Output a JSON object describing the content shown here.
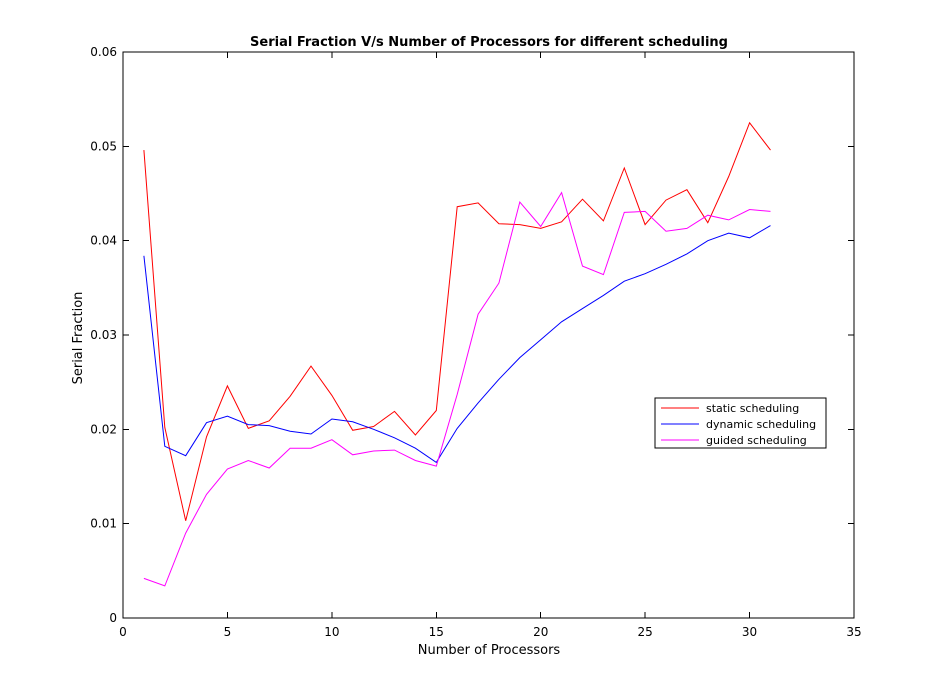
{
  "chart_data": {
    "type": "line",
    "title": "Serial Fraction V/s Number of Processors for different scheduling",
    "xlabel": "Number of Processors",
    "ylabel": "Serial Fraction",
    "xlim": [
      0,
      35
    ],
    "ylim": [
      0,
      0.06
    ],
    "xticks": [
      "0",
      "5",
      "10",
      "15",
      "20",
      "25",
      "30",
      "35"
    ],
    "yticks": [
      "0",
      "0.01",
      "0.02",
      "0.03",
      "0.04",
      "0.05",
      "0.06"
    ],
    "grid": false,
    "legend_position": "right",
    "x": [
      1,
      2,
      3,
      4,
      5,
      6,
      7,
      8,
      9,
      10,
      11,
      12,
      13,
      14,
      15,
      16,
      17,
      18,
      19,
      20,
      21,
      22,
      23,
      24,
      25,
      26,
      27,
      28,
      29,
      30,
      31
    ],
    "series": [
      {
        "name": "static scheduling",
        "color": "#ff0000",
        "values": [
          0.0496,
          0.0202,
          0.0103,
          0.0192,
          0.0246,
          0.0201,
          0.0209,
          0.0235,
          0.0267,
          0.0236,
          0.0199,
          0.0203,
          0.0219,
          0.0194,
          0.022,
          0.0436,
          0.044,
          0.0418,
          0.0417,
          0.0413,
          0.042,
          0.0444,
          0.0421,
          0.0477,
          0.0417,
          0.0443,
          0.0454,
          0.0419,
          0.0468,
          0.0525,
          0.0496
        ]
      },
      {
        "name": "dynamic scheduling",
        "color": "#0000ff",
        "values": [
          0.0384,
          0.0182,
          0.0172,
          0.0207,
          0.0214,
          0.0205,
          0.0204,
          0.0198,
          0.0195,
          0.0211,
          0.0208,
          0.02,
          0.0191,
          0.018,
          0.0165,
          0.0201,
          0.0228,
          0.0253,
          0.0276,
          0.0295,
          0.0314,
          0.0328,
          0.0342,
          0.0357,
          0.0365,
          0.0375,
          0.0386,
          0.04,
          0.0408,
          0.0403,
          0.0416
        ]
      },
      {
        "name": "guided scheduling",
        "color": "#ff00ff",
        "values": [
          0.0042,
          0.0034,
          0.009,
          0.0131,
          0.0158,
          0.0167,
          0.0159,
          0.018,
          0.018,
          0.0189,
          0.0173,
          0.0177,
          0.0178,
          0.0167,
          0.0161,
          0.0237,
          0.0322,
          0.0355,
          0.0441,
          0.0415,
          0.0451,
          0.0373,
          0.0364,
          0.043,
          0.0431,
          0.041,
          0.0413,
          0.0427,
          0.0422,
          0.0433,
          0.0431
        ]
      }
    ]
  }
}
